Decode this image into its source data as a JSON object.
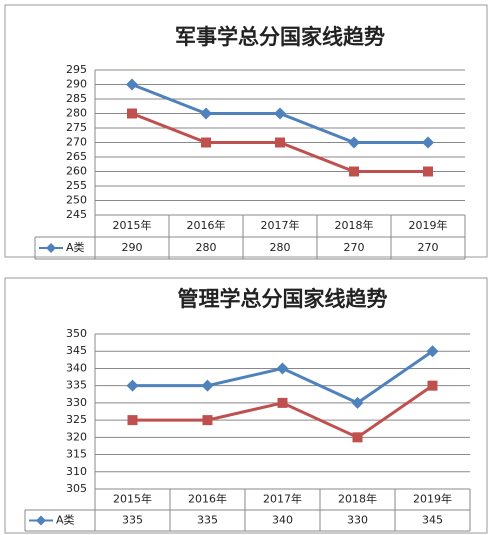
{
  "chart_data": [
    {
      "type": "line",
      "title": "军事学总分国家线趋势",
      "categories": [
        "2015年",
        "2016年",
        "2017年",
        "2018年",
        "2019年"
      ],
      "series": [
        {
          "name": "A类",
          "color": "#4f81bd",
          "marker": "diamond",
          "values": [
            290,
            280,
            280,
            270,
            270
          ]
        },
        {
          "color": "#c0504d",
          "marker": "square",
          "values": [
            280,
            270,
            270,
            260,
            260
          ]
        }
      ],
      "ylim": [
        245,
        295
      ],
      "yticks": [
        245,
        250,
        255,
        260,
        265,
        270,
        275,
        280,
        285,
        290,
        295
      ],
      "grid": true
    },
    {
      "type": "line",
      "title": "管理学总分国家线趋势",
      "categories": [
        "2015年",
        "2016年",
        "2017年",
        "2018年",
        "2019年"
      ],
      "series": [
        {
          "name": "A类",
          "color": "#4f81bd",
          "marker": "diamond",
          "values": [
            335,
            335,
            340,
            330,
            345
          ]
        },
        {
          "color": "#c0504d",
          "marker": "square",
          "values": [
            325,
            325,
            330,
            320,
            335
          ]
        }
      ],
      "ylim": [
        305,
        350
      ],
      "yticks": [
        305,
        310,
        315,
        320,
        325,
        330,
        335,
        340,
        345,
        350
      ],
      "grid": true
    }
  ]
}
